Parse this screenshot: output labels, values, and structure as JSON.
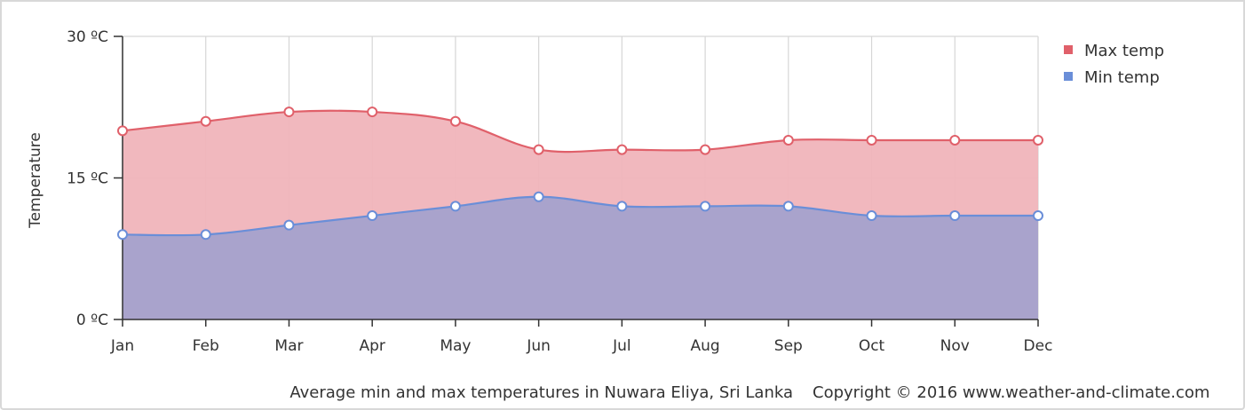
{
  "chart_data": {
    "type": "area",
    "categories": [
      "Jan",
      "Feb",
      "Mar",
      "Apr",
      "May",
      "Jun",
      "Jul",
      "Aug",
      "Sep",
      "Oct",
      "Nov",
      "Dec"
    ],
    "series": [
      {
        "name": "Max temp",
        "values": [
          20,
          21,
          22,
          22,
          21,
          18,
          18,
          18,
          19,
          19,
          19,
          19
        ],
        "color": "#e0606a",
        "fill": "#f0b4ba"
      },
      {
        "name": "Min temp",
        "values": [
          9,
          9,
          10,
          11,
          12,
          13,
          12,
          12,
          12,
          11,
          11,
          11
        ],
        "color": "#6a8ed8",
        "fill": "#a9a3cc"
      }
    ],
    "ylabel": "Temperature",
    "yticks": [
      "0 ºC",
      "15 ºC",
      "30 ºC"
    ],
    "ylim": [
      0,
      30
    ],
    "grid": true,
    "legend_position": "top-right"
  },
  "footer": {
    "caption": "Average min and max temperatures in Nuwara Eliya, Sri Lanka",
    "copyright": "Copyright © 2016 www.weather-and-climate.com"
  }
}
